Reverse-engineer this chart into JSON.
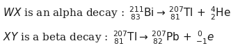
{
  "line1": "$\\mathit{WX}$ is an alpha decay : $\\,^{211}_{\\,83}\\mathrm{Bi} \\rightarrow\\,^{207}_{\\,81}\\mathrm{Tl}\\,+\\,^{\\,4}_{\\,2}\\mathrm{He}$",
  "line2": "$\\mathit{XY}$ is a beta decay : $\\,^{207}_{\\,81}\\mathrm{Tl} \\rightarrow\\,^{207}_{\\,82}\\mathrm{Pb}\\,+\\,^{\\,0}_{-1}\\mathit{e}$",
  "fontsize": 11,
  "bg_color": "#ffffff",
  "text_color": "#1a1a1a",
  "fig_width": 3.32,
  "fig_height": 0.69,
  "dpi": 100
}
